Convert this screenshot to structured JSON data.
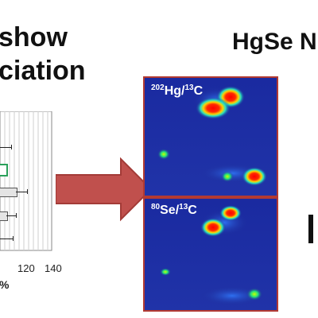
{
  "left_title": {
    "line1": "show",
    "line2": "ciation"
  },
  "right_title": "HgSe N",
  "chart": {
    "ticks": [
      "120",
      "140"
    ],
    "axis_unit": "%"
  },
  "panels": [
    {
      "iso_a": "202",
      "el_a": "Hg",
      "sep": "/",
      "iso_b": "13",
      "el_b": "C"
    },
    {
      "iso_a": "80",
      "el_a": "Se",
      "sep": "/",
      "iso_b": "13",
      "el_b": "C"
    }
  ],
  "colors": {
    "arrow": "#c0504d",
    "panel_border": "#b23a32",
    "panel_bg": "#1f2f9a",
    "highlight_box": "#2aa05a"
  }
}
